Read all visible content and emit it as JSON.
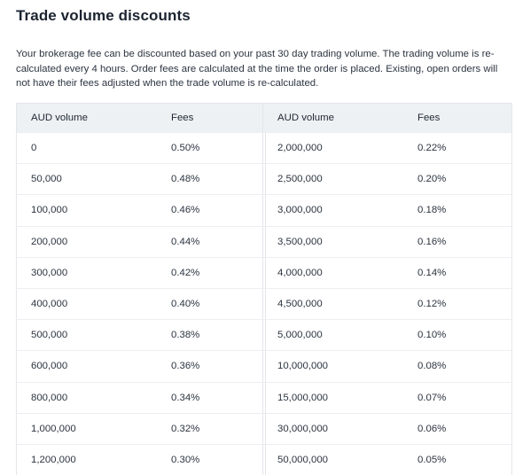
{
  "title": "Trade volume discounts",
  "intro": "Your brokerage fee can be discounted based on your past 30 day trading volume. The trading volume is re-calculated every 4 hours. Order fees are calculated at the time the order is placed. Existing, open orders will not have their fees adjusted when the trade volume is re-calculated.",
  "table_headers": {
    "volume": "AUD volume",
    "fees": "Fees"
  },
  "left_table": [
    {
      "volume": "0",
      "fee": "0.50%"
    },
    {
      "volume": "50,000",
      "fee": "0.48%"
    },
    {
      "volume": "100,000",
      "fee": "0.46%"
    },
    {
      "volume": "200,000",
      "fee": "0.44%"
    },
    {
      "volume": "300,000",
      "fee": "0.42%"
    },
    {
      "volume": "400,000",
      "fee": "0.40%"
    },
    {
      "volume": "500,000",
      "fee": "0.38%"
    },
    {
      "volume": "600,000",
      "fee": "0.36%"
    },
    {
      "volume": "800,000",
      "fee": "0.34%"
    },
    {
      "volume": "1,000,000",
      "fee": "0.32%"
    },
    {
      "volume": "1,200,000",
      "fee": "0.30%"
    }
  ],
  "right_table": [
    {
      "volume": "2,000,000",
      "fee": "0.22%"
    },
    {
      "volume": "2,500,000",
      "fee": "0.20%"
    },
    {
      "volume": "3,000,000",
      "fee": "0.18%"
    },
    {
      "volume": "3,500,000",
      "fee": "0.16%"
    },
    {
      "volume": "4,000,000",
      "fee": "0.14%"
    },
    {
      "volume": "4,500,000",
      "fee": "0.12%"
    },
    {
      "volume": "5,000,000",
      "fee": "0.10%"
    },
    {
      "volume": "10,000,000",
      "fee": "0.08%"
    },
    {
      "volume": "15,000,000",
      "fee": "0.07%"
    },
    {
      "volume": "30,000,000",
      "fee": "0.06%"
    },
    {
      "volume": "50,000,000",
      "fee": "0.05%"
    }
  ]
}
